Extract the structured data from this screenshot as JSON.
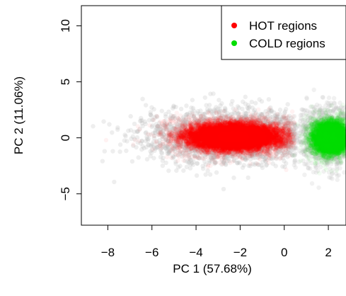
{
  "chart_data": {
    "type": "scatter",
    "xlabel": "PC 1 (57.68%)",
    "ylabel": "PC 2 (11.06%)",
    "xlim": [
      -9.2,
      2.8
    ],
    "ylim": [
      -7.8,
      11.8
    ],
    "x_ticks": [
      -8,
      -6,
      -4,
      -2,
      0,
      2
    ],
    "x_tick_labels": [
      "−8",
      "−6",
      "−4",
      "−2",
      "0",
      "2"
    ],
    "y_ticks": [
      -5,
      0,
      5,
      10
    ],
    "y_tick_labels": [
      "−5",
      "0",
      "5",
      "10"
    ],
    "grid": false,
    "legend": {
      "position": "top-right"
    },
    "series": [
      {
        "name": "HOT regions",
        "color": "#ff0000",
        "center": [
          -2.3,
          0.1
        ],
        "spread": [
          1.6,
          1.1
        ],
        "x_range": [
          -9.0,
          0.5
        ]
      },
      {
        "name": "COLD regions",
        "color": "#00dd00",
        "center": [
          2.1,
          0.0
        ],
        "spread": [
          0.6,
          1.3
        ],
        "x_range": [
          0.3,
          2.8
        ]
      }
    ]
  }
}
